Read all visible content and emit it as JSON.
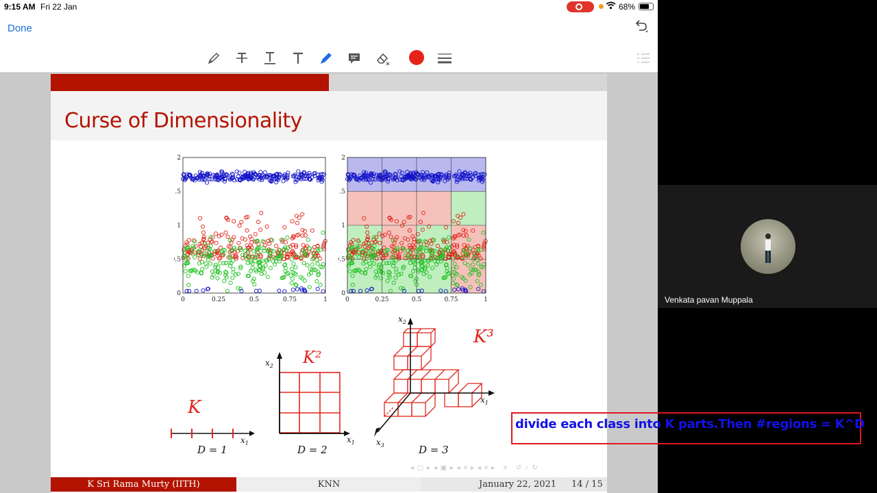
{
  "status_bar": {
    "time": "9:15 AM",
    "date": "Fri 22 Jan",
    "battery": "68%"
  },
  "nav": {
    "done_label": "Done"
  },
  "toolbar": {
    "icons": [
      "pen-icon",
      "strikethrough-icon",
      "underline-text-icon",
      "text-icon",
      "highlighter-icon",
      "comment-icon",
      "eraser-icon",
      "color-picker-icon",
      "line-weight-icon"
    ],
    "active_color": "#e6231a"
  },
  "slide": {
    "title": "Curse of Dimensionality",
    "progress_fraction": 0.5,
    "accent_color": "#b31300",
    "plot_ticks_x": [
      "0",
      "0.25",
      "0.5",
      "0.75",
      "1"
    ],
    "plot_ticks_y": [
      "0",
      "0.5",
      "1",
      "1.5",
      "2"
    ],
    "handwritten": {
      "d1": "K",
      "d2": "K²",
      "d3": "K³"
    },
    "axis_labels": {
      "x1": "x",
      "x1_sub": "1",
      "x2": "x",
      "x2_sub": "2",
      "x3": "x",
      "x3_sub": "3"
    },
    "d_labels": [
      "D = 1",
      "D = 2",
      "D = 3"
    ],
    "footer": {
      "author": "K Sri Rama Murty  (IITH)",
      "topic": "KNN",
      "date": "January 22, 2021",
      "page": "14 / 15"
    }
  },
  "participant": {
    "name": "Venkata pavan Muppala"
  },
  "annotation": {
    "text": "divide each class into K parts.Then #regions = K^D",
    "text_color": "#1212e6",
    "border_color": "#e0161d"
  }
}
